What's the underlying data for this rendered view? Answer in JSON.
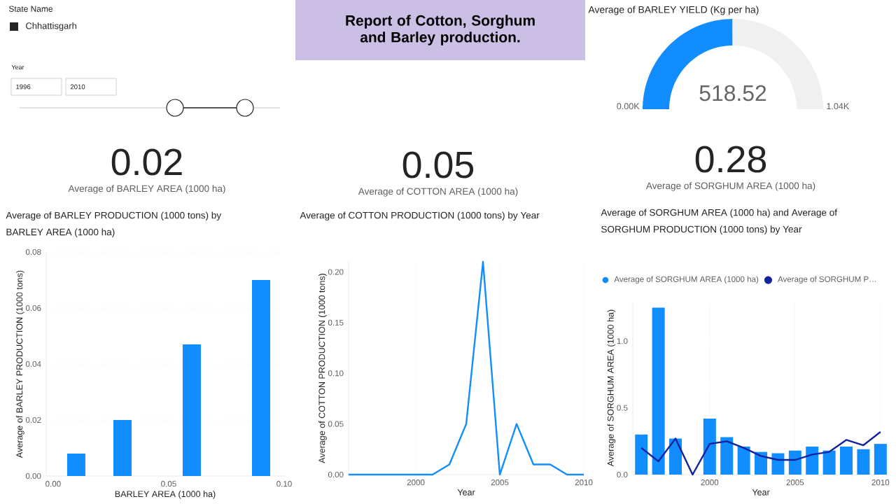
{
  "chart_data": [
    {
      "type": "other",
      "title": "State Name",
      "annotations": [
        "Chhattisgarh",
        "Year",
        "1996",
        "2010"
      ]
    },
    {
      "type": "other",
      "title": "Report of Cotton, Sorghum and Barley production."
    },
    {
      "type": "donut",
      "title": "Average of BARLEY YIELD (Kg per ha)",
      "categories": [
        null,
        null
      ],
      "values": [
        518.52,
        521.48
      ],
      "colors": [
        "#118dff",
        "#f0f0f0"
      ],
      "value_labels": [
        "518.52",
        null
      ],
      "annotations": [
        "0.00K",
        "1.04K"
      ]
    },
    {
      "type": "other",
      "title": "Average of BARLEY AREA (1000 ha)",
      "annotations": [
        "0.02"
      ]
    },
    {
      "type": "other",
      "title": "Average of COTTON AREA (1000 ha)",
      "annotations": [
        "0.05"
      ]
    },
    {
      "type": "other",
      "title": "Average of SORGHUM AREA (1000 ha)",
      "annotations": [
        "0.28"
      ]
    },
    {
      "type": "bar",
      "title": "Average of BARLEY PRODUCTION (1000 tons) by BARLEY AREA (1000 ha)",
      "xlabel": "BARLEY AREA (1000 ha)",
      "ylabel": "Average of BARLEY PRODUCTION (1000 tons)",
      "x": [
        0.01,
        0.03,
        0.06,
        0.09
      ],
      "values": [
        0.008,
        0.02,
        0.047,
        0.07
      ],
      "color": "#118dff",
      "xlim": [
        -0.003,
        0.1
      ],
      "xticks": [
        {
          "value": 0,
          "label": "0.00"
        },
        {
          "value": 0.05,
          "label": "0.05"
        },
        {
          "value": 0.1,
          "label": "0.10"
        }
      ],
      "ylim": [
        0,
        0.08
      ],
      "yticks": [
        {
          "value": 0,
          "label": "0.00"
        },
        {
          "value": 0.02,
          "label": "0.02"
        },
        {
          "value": 0.04,
          "label": "0.04"
        },
        {
          "value": 0.06,
          "label": "0.06"
        },
        {
          "value": 0.08,
          "label": "0.08"
        }
      ],
      "grid": "y"
    },
    {
      "type": "line",
      "title": "Average of COTTON PRODUCTION (1000 tons) by Year",
      "xlabel": "Year",
      "ylabel": "Average of COTTON PRODUCTION (1000 tons)",
      "x": [
        1996,
        1997,
        1998,
        1999,
        2000,
        2001,
        2002,
        2003,
        2004,
        2005,
        2006,
        2007,
        2008,
        2009,
        2010
      ],
      "values": [
        0,
        0,
        0,
        0,
        0,
        0,
        0.01,
        0.05,
        0.21,
        0,
        0.05,
        0.01,
        0.01,
        0,
        0
      ],
      "color": "#118dff",
      "xlim": [
        1996,
        2010
      ],
      "xticks": [
        2000,
        2005,
        2010
      ],
      "ylim": [
        0,
        0.21
      ],
      "yticks": [
        {
          "value": 0,
          "label": "0.00"
        },
        {
          "value": 0.05,
          "label": "0.05"
        },
        {
          "value": 0.1,
          "label": "0.10"
        },
        {
          "value": 0.15,
          "label": "0.15"
        },
        {
          "value": 0.2,
          "label": "0.20"
        }
      ],
      "grid": "x"
    },
    {
      "type": "bar",
      "title": "Average of SORGHUM AREA (1000 ha) and Average of SORGHUM PRODUCTION (1000 tons) by Year",
      "xlabel": "Year",
      "ylabel": "Average of SORGHUM AREA (1000 ha)",
      "x": [
        1996,
        1997,
        1998,
        1999,
        2000,
        2001,
        2002,
        2003,
        2004,
        2005,
        2006,
        2007,
        2008,
        2009,
        2010
      ],
      "legend": "top left",
      "grid": "x",
      "series": [
        {
          "name": "Average of SORGHUM AREA (1000 ha)",
          "color": "#118dff",
          "values": [
            0.3,
            1.25,
            0.27,
            null,
            0.42,
            0.28,
            0.21,
            0.17,
            0.16,
            0.18,
            0.21,
            0.18,
            0.21,
            0.19,
            0.23
          ]
        },
        {
          "name": "Average of SORGHUM P…",
          "type": "line",
          "color": "#12239e",
          "values": [
            0.2,
            0.1,
            0.27,
            0.0,
            0.23,
            0.25,
            0.2,
            0.14,
            0.11,
            0.11,
            0.15,
            0.17,
            0.26,
            0.22,
            0.32
          ]
        }
      ],
      "xlim": [
        1995.5,
        2010.5
      ],
      "xticks": [
        2000,
        2005,
        2010
      ],
      "ylim": [
        0,
        1.3
      ],
      "yticks": [
        {
          "value": 0,
          "label": "0.0"
        },
        {
          "value": 0.5,
          "label": "0.5"
        },
        {
          "value": 1.0,
          "label": "1.0"
        }
      ]
    }
  ]
}
